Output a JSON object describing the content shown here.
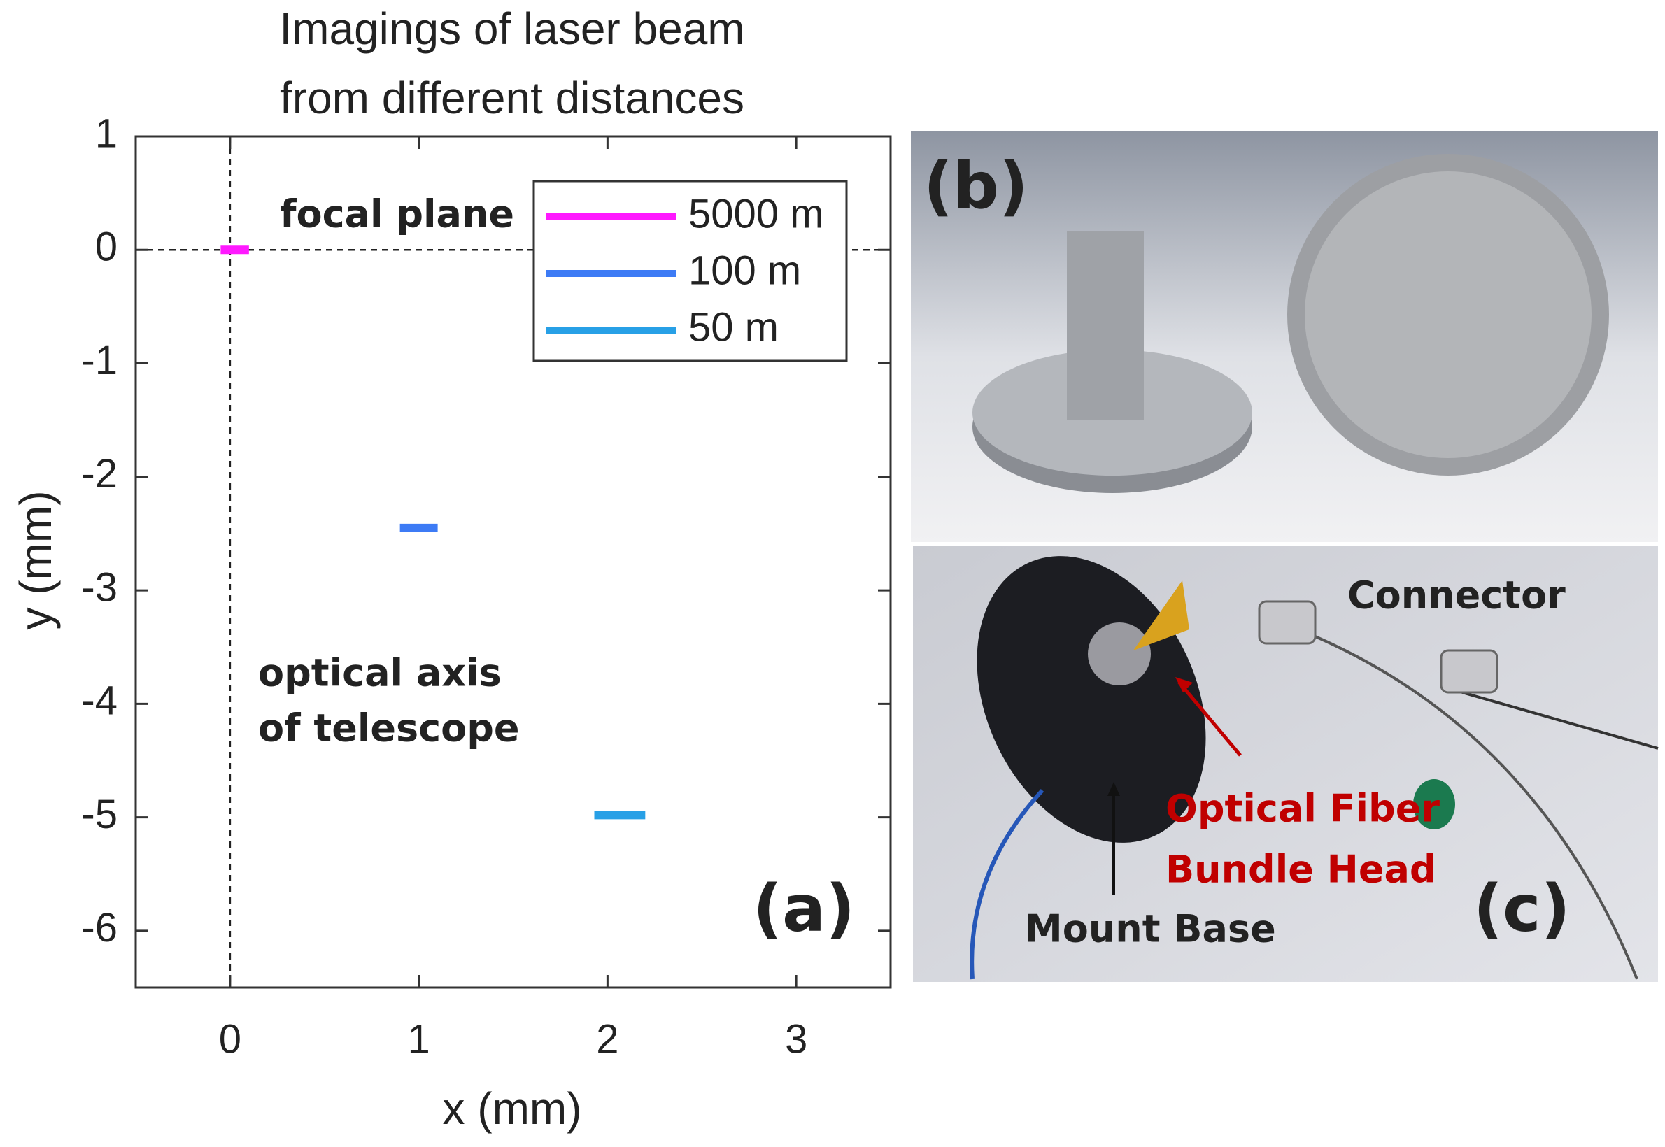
{
  "chart_data": {
    "type": "line",
    "title": [
      "Imagings of laser beam",
      "from different distances"
    ],
    "x_label": "x (mm)",
    "y_label": "y (mm)",
    "xlim": [
      -0.5,
      3.5
    ],
    "xticks": [
      0,
      1,
      2,
      3
    ],
    "ylim": [
      -6.5,
      1
    ],
    "yticks": [
      1,
      0,
      -1,
      -2,
      -3,
      -4,
      -5,
      -6
    ],
    "legend": "upper right",
    "series": [
      {
        "name": "5000 m",
        "color": "#ff19ff",
        "x": [
          -0.05,
          0.1
        ],
        "values": [
          0,
          0
        ]
      },
      {
        "name": "100 m",
        "color": "#3d7bf5",
        "x": [
          0.9,
          1.1
        ],
        "values": [
          -2.45,
          -2.45
        ]
      },
      {
        "name": "50 m",
        "color": "#28a0e6",
        "x": [
          1.93,
          2.2
        ],
        "values": [
          -4.98,
          -4.98
        ]
      }
    ],
    "annotations": [
      "focal plane",
      "optical axis",
      "of telescope",
      "(a)"
    ]
  },
  "panels": [
    {
      "label": "(b)"
    },
    {
      "label": "(c)",
      "annotations": [
        "Connector",
        "Optical Fiber",
        "Bundle Head",
        "Mount Base"
      ]
    }
  ]
}
